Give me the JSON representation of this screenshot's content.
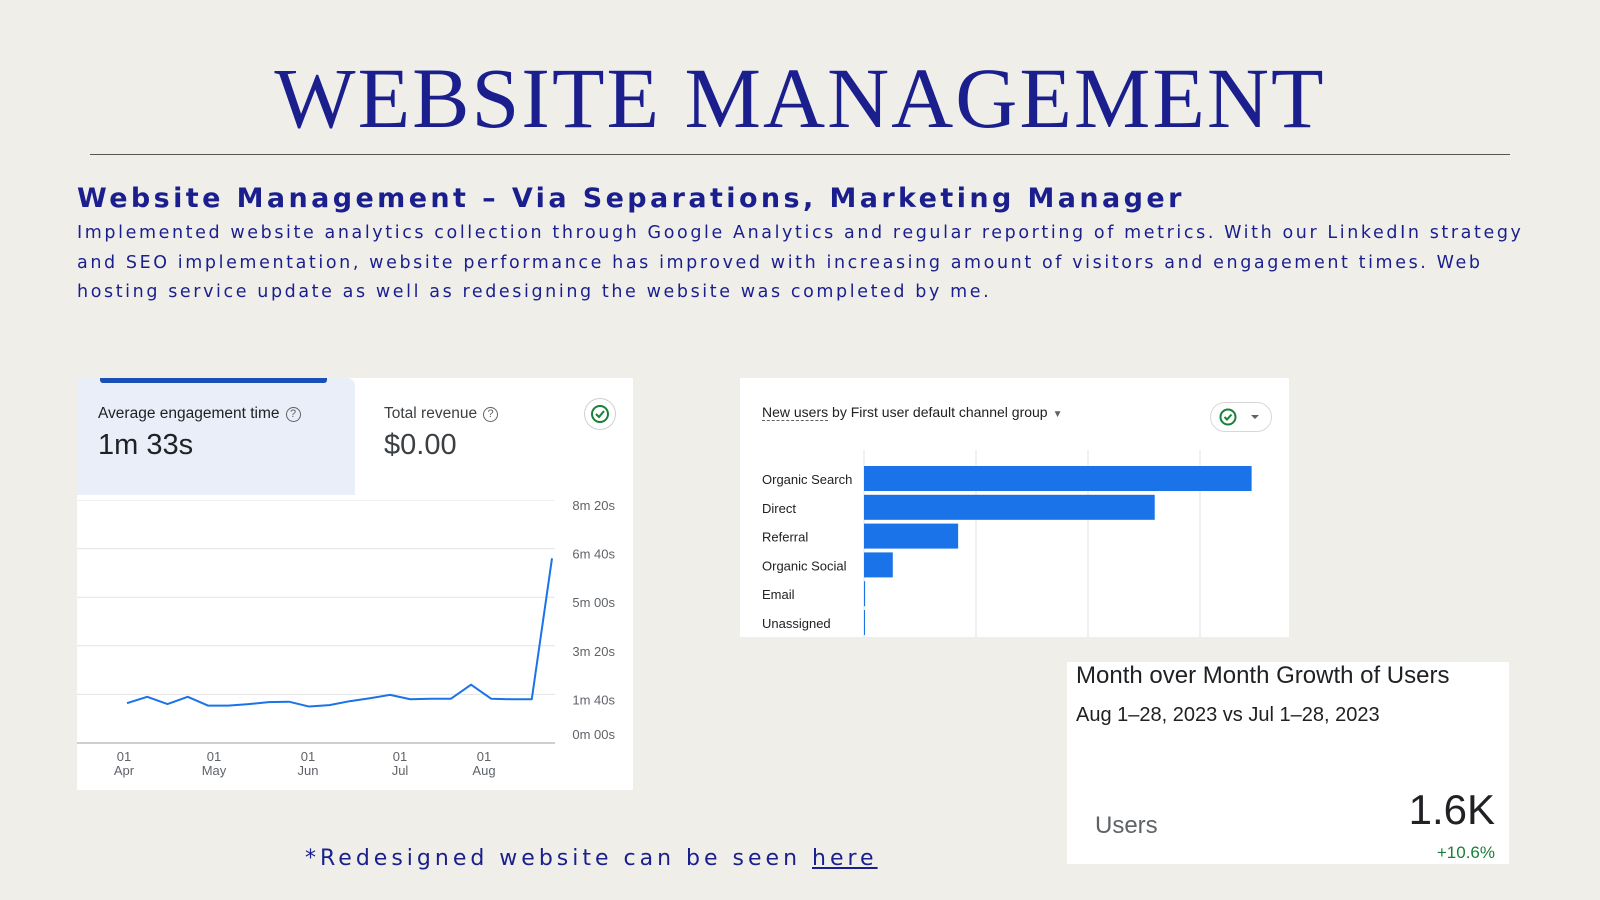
{
  "slide": {
    "title": "WEBSITE MANAGEMENT",
    "subheading": "Website Management  – Via Separations, Marketing Manager",
    "description": "Implemented website analytics collection through Google Analytics and regular reporting of metrics. With our LinkedIn strategy and SEO implementation, website performance has improved with increasing amount of visitors and engagement times. Web hosting service update as well as redesigning the website was completed by me.",
    "footnote_prefix": "*Redesigned website can be seen ",
    "footnote_link": "here",
    "colors": {
      "accent": "#1b1f8e",
      "background": "#efeee9",
      "bar_blue": "#1a73e8",
      "positive_green": "#188038"
    }
  },
  "engagement_card": {
    "active_metric_label": "Average engagement time",
    "active_metric_value": "1m 33s",
    "secondary_metric_label": "Total revenue",
    "secondary_metric_value": "$0.00",
    "status_icon": "check-circle-icon",
    "help_icon": "help-circle-icon"
  },
  "channel_card": {
    "title_metric": "New users",
    "title_rest": " by First user default channel group",
    "status_icon": "check-circle-icon",
    "dropdown_icon": "caret-down-icon"
  },
  "growth_card": {
    "title": "Month over Month Growth of Users",
    "dates": "Aug 1–28, 2023 vs Jul 1–28, 2023",
    "metric_label": "Users",
    "metric_value": "1.6K",
    "change": "+10.6%"
  },
  "chart_data": [
    {
      "type": "line",
      "series": [
        {
          "values": [
            82,
            95,
            80,
            95,
            77,
            77,
            80,
            84,
            85,
            75,
            78,
            86,
            92,
            99,
            90,
            91,
            91,
            120,
            91,
            90,
            90,
            380
          ]
        }
      ],
      "y_ticks": [
        "8m 20s",
        "6m 40s",
        "5m 00s",
        "3m 20s",
        "1m 40s",
        "0m 00s"
      ],
      "ylim": [
        0,
        500
      ],
      "x_ticks": [
        {
          "day": "01",
          "month": "Apr"
        },
        {
          "day": "01",
          "month": "May"
        },
        {
          "day": "01",
          "month": "Jun"
        },
        {
          "day": "01",
          "month": "Jul"
        },
        {
          "day": "01",
          "month": "Aug"
        }
      ],
      "grid": true
    },
    {
      "type": "bar",
      "orientation": "horizontal",
      "categories": [
        "Organic Search",
        "Direct",
        "Referral",
        "Organic Social",
        "Email",
        "Unassigned"
      ],
      "values": [
        700,
        525,
        170,
        52,
        2,
        1
      ],
      "xlim": [
        0,
        800
      ],
      "grid": true
    }
  ]
}
